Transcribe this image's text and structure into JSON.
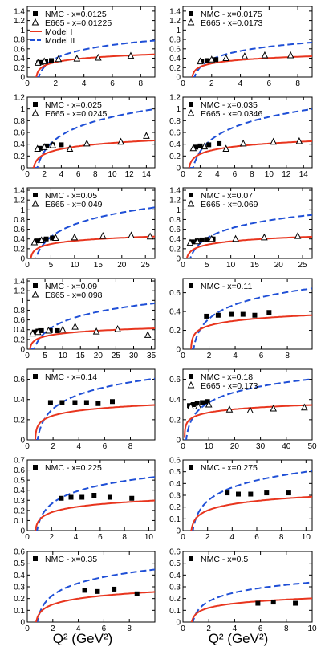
{
  "figure": {
    "xlabel": "Q² (GeV²)"
  },
  "colors": {
    "model1": "#e8351e",
    "model2": "#1f4fd6",
    "axis": "#000000"
  },
  "legend_labels": {
    "model1": "Model I",
    "model2": "Model II"
  },
  "chart_data": [
    {
      "type": "line",
      "xlim": [
        0,
        9
      ],
      "ylim": [
        0,
        1.5
      ],
      "xticks": [
        "0",
        "2",
        "4",
        "6",
        "8"
      ],
      "yticks": [
        "0",
        "0.2",
        "0.4",
        "0.6",
        "0.8",
        "1",
        "1.2",
        "1.4"
      ],
      "legend": {
        "nmc": "NMC - x=0.0125",
        "e665": "E665 - x=0.01225",
        "model1": true,
        "model2": true
      },
      "nmc": [
        [
          0.8,
          0.3
        ],
        [
          1.0,
          0.31
        ],
        [
          1.3,
          0.33
        ],
        [
          1.7,
          0.35
        ]
      ],
      "e665": [
        [
          0.75,
          0.3
        ],
        [
          1.2,
          0.33
        ],
        [
          2.2,
          0.38
        ],
        [
          3.5,
          0.39
        ],
        [
          5.0,
          0.41
        ],
        [
          7.3,
          0.45
        ]
      ],
      "model1": [
        0.26,
        0.37,
        0.42,
        0.45,
        0.48
      ],
      "model2": [
        0.28,
        0.5,
        0.62,
        0.71,
        0.78
      ]
    },
    {
      "type": "line",
      "xlim": [
        0,
        9
      ],
      "ylim": [
        0,
        1.5
      ],
      "xticks": [
        "0",
        "2",
        "4",
        "6",
        "8"
      ],
      "yticks": [
        "0",
        "0.2",
        "0.4",
        "0.6",
        "0.8",
        "1",
        "1.2",
        "1.4"
      ],
      "legend": {
        "nmc": "NMC - x=0.0175",
        "e665": "E665 - x=0.0173"
      },
      "nmc": [
        [
          1.3,
          0.34
        ],
        [
          1.7,
          0.35
        ],
        [
          2.3,
          0.37
        ]
      ],
      "e665": [
        [
          1.2,
          0.33
        ],
        [
          2.0,
          0.37
        ],
        [
          3.0,
          0.4
        ],
        [
          4.3,
          0.44
        ],
        [
          5.7,
          0.46
        ],
        [
          7.5,
          0.46
        ]
      ],
      "model1": [
        0.24,
        0.33,
        0.38,
        0.42,
        0.44
      ],
      "model2": [
        0.27,
        0.47,
        0.59,
        0.67,
        0.74
      ]
    },
    {
      "type": "line",
      "xlim": [
        0,
        15
      ],
      "ylim": [
        0,
        1.2
      ],
      "xticks": [
        "0",
        "2",
        "4",
        "6",
        "8",
        "10",
        "12",
        "14"
      ],
      "yticks": [
        "0",
        "0.2",
        "0.4",
        "0.6",
        "0.8",
        "1",
        "1.2"
      ],
      "legend": {
        "nmc": "NMC - x=0.025",
        "e665": "E665 - x=0.0245"
      },
      "nmc": [
        [
          1.5,
          0.33
        ],
        [
          2.3,
          0.37
        ],
        [
          3.0,
          0.39
        ],
        [
          4.0,
          0.39
        ]
      ],
      "e665": [
        [
          1.2,
          0.32
        ],
        [
          2.0,
          0.35
        ],
        [
          3.0,
          0.38
        ],
        [
          5.0,
          0.32
        ],
        [
          7.0,
          0.41
        ],
        [
          11.0,
          0.44
        ],
        [
          14.0,
          0.54
        ]
      ],
      "model1": [
        0.23,
        0.33,
        0.39,
        0.43,
        0.47
      ],
      "model2": [
        0.27,
        0.6,
        0.77,
        0.9,
        1.0
      ]
    },
    {
      "type": "line",
      "xlim": [
        0,
        15
      ],
      "ylim": [
        0,
        1.2
      ],
      "xticks": [
        "0",
        "2",
        "4",
        "6",
        "8",
        "10",
        "12",
        "14"
      ],
      "yticks": [
        "0",
        "0.2",
        "0.4",
        "0.6",
        "0.8",
        "1",
        "1.2"
      ],
      "legend": {
        "nmc": "NMC - x=0.035",
        "e665": "E665 - x=0.0346"
      },
      "nmc": [
        [
          1.5,
          0.35
        ],
        [
          2.0,
          0.37
        ],
        [
          3.0,
          0.39
        ],
        [
          4.2,
          0.41
        ]
      ],
      "e665": [
        [
          1.2,
          0.33
        ],
        [
          2.5,
          0.36
        ],
        [
          5.0,
          0.32
        ],
        [
          7.0,
          0.41
        ],
        [
          10.5,
          0.44
        ],
        [
          13.5,
          0.45
        ]
      ],
      "model1": [
        0.23,
        0.33,
        0.39,
        0.42,
        0.45
      ],
      "model2": [
        0.27,
        0.6,
        0.77,
        0.9,
        1.0
      ]
    },
    {
      "type": "line",
      "xlim": [
        0,
        27
      ],
      "ylim": [
        0,
        1.45
      ],
      "xticks": [
        "0",
        "5",
        "10",
        "15",
        "20",
        "25"
      ],
      "yticks": [
        "0",
        "0.2",
        "0.4",
        "0.6",
        "0.8",
        "1",
        "1.2",
        "1.4"
      ],
      "legend": {
        "nmc": "NMC - x=0.05",
        "e665": "E665 - x=0.049"
      },
      "nmc": [
        [
          2.0,
          0.36
        ],
        [
          3.0,
          0.38
        ],
        [
          4.0,
          0.4
        ],
        [
          5.3,
          0.42
        ]
      ],
      "e665": [
        [
          1.5,
          0.33
        ],
        [
          3.0,
          0.37
        ],
        [
          6.0,
          0.42
        ],
        [
          10.0,
          0.43
        ],
        [
          16.0,
          0.46
        ],
        [
          22.0,
          0.47
        ],
        [
          26.0,
          0.45
        ]
      ],
      "model1": [
        0.25,
        0.34,
        0.38,
        0.42,
        0.46
      ],
      "model2": [
        0.27,
        0.6,
        0.78,
        0.93,
        1.08
      ]
    },
    {
      "type": "line",
      "xlim": [
        0,
        27
      ],
      "ylim": [
        0,
        1.45
      ],
      "xticks": [
        "0",
        "5",
        "10",
        "15",
        "20",
        "25"
      ],
      "yticks": [
        "0",
        "0.2",
        "0.4",
        "0.6",
        "0.8",
        "1",
        "1.2",
        "1.4"
      ],
      "legend": {
        "nmc": "NMC - x=0.07",
        "e665": "E665 - x=0.069"
      },
      "nmc": [
        [
          2.0,
          0.34
        ],
        [
          3.0,
          0.36
        ],
        [
          4.0,
          0.38
        ],
        [
          5.0,
          0.39
        ],
        [
          6.3,
          0.4
        ]
      ],
      "e665": [
        [
          1.5,
          0.32
        ],
        [
          3.0,
          0.35
        ],
        [
          6.0,
          0.4
        ],
        [
          11.0,
          0.4
        ],
        [
          17.0,
          0.43
        ],
        [
          24.0,
          0.46
        ]
      ],
      "model1": [
        0.23,
        0.33,
        0.37,
        0.41,
        0.46
      ],
      "model2": [
        0.26,
        0.56,
        0.7,
        0.8,
        0.9
      ]
    },
    {
      "type": "line",
      "xlim": [
        0,
        36
      ],
      "ylim": [
        0,
        1.45
      ],
      "xticks": [
        "0",
        "5",
        "10",
        "15",
        "20",
        "25",
        "30",
        "35"
      ],
      "yticks": [
        "0",
        "0.2",
        "0.4",
        "0.6",
        "0.8",
        "1",
        "1.2",
        "1.4"
      ],
      "legend": {
        "nmc": "NMC - x=0.09",
        "e665": "E665 - x=0.098"
      },
      "nmc": [
        [
          2.0,
          0.35
        ],
        [
          3.0,
          0.37
        ],
        [
          4.0,
          0.38
        ],
        [
          6.5,
          0.38
        ],
        [
          8.5,
          0.38
        ]
      ],
      "e665": [
        [
          1.5,
          0.32
        ],
        [
          3.0,
          0.35
        ],
        [
          6.0,
          0.38
        ],
        [
          10.0,
          0.4
        ],
        [
          13.5,
          0.46
        ],
        [
          19.5,
          0.36
        ],
        [
          25.5,
          0.41
        ],
        [
          34.0,
          0.29
        ]
      ],
      "model1": [
        0.24,
        0.33,
        0.37,
        0.4,
        0.43
      ],
      "model2": [
        0.26,
        0.58,
        0.73,
        0.84,
        0.95
      ]
    },
    {
      "type": "line",
      "xlim": [
        0,
        9.9
      ],
      "ylim": [
        0,
        0.75
      ],
      "xticks": [
        "0",
        "2",
        "4",
        "6",
        "8"
      ],
      "yticks": [
        "0",
        "0.2",
        "0.4",
        "0.6"
      ],
      "legend": {
        "nmc": "NMC - x=0.11"
      },
      "nmc": [
        [
          1.8,
          0.35
        ],
        [
          2.7,
          0.36
        ],
        [
          3.7,
          0.37
        ],
        [
          4.6,
          0.37
        ],
        [
          5.5,
          0.36
        ],
        [
          6.6,
          0.39
        ]
      ],
      "e665": [],
      "model1": [
        0.22,
        0.29,
        0.32,
        0.34,
        0.36
      ],
      "model2": [
        0.25,
        0.42,
        0.52,
        0.59,
        0.65
      ]
    },
    {
      "type": "line",
      "xlim": [
        0,
        9.9
      ],
      "ylim": [
        0,
        0.7
      ],
      "xticks": [
        "0",
        "2",
        "4",
        "6",
        "8"
      ],
      "yticks": [
        "0",
        "0.2",
        "0.4",
        "0.6"
      ],
      "legend": {
        "nmc": "NMC - x=0.14"
      },
      "nmc": [
        [
          1.8,
          0.37
        ],
        [
          2.7,
          0.37
        ],
        [
          3.7,
          0.37
        ],
        [
          4.6,
          0.37
        ],
        [
          5.5,
          0.36
        ],
        [
          6.6,
          0.38
        ]
      ],
      "e665": [],
      "model1": [
        0.21,
        0.28,
        0.31,
        0.33,
        0.34
      ],
      "model2": [
        0.24,
        0.4,
        0.49,
        0.56,
        0.61
      ]
    },
    {
      "type": "line",
      "xlim": [
        0,
        50
      ],
      "ylim": [
        0,
        0.7
      ],
      "xticks": [
        "0",
        "10",
        "20",
        "30",
        "40",
        "50"
      ],
      "yticks": [
        "0",
        "0.2",
        "0.4",
        "0.6"
      ],
      "legend": {
        "nmc": "NMC - x=0.18",
        "e665": "E665 - x=0.173"
      },
      "nmc": [
        [
          2.5,
          0.34
        ],
        [
          4.0,
          0.35
        ],
        [
          5.5,
          0.36
        ],
        [
          7.5,
          0.37
        ],
        [
          9.5,
          0.38
        ]
      ],
      "e665": [
        [
          3.0,
          0.33
        ],
        [
          6.0,
          0.33
        ],
        [
          10.0,
          0.35
        ],
        [
          18.0,
          0.3
        ],
        [
          26.0,
          0.29
        ],
        [
          35.0,
          0.31
        ],
        [
          47.0,
          0.32
        ]
      ],
      "model1": [
        0.24,
        0.29,
        0.31,
        0.33,
        0.35
      ],
      "model2": [
        0.27,
        0.43,
        0.5,
        0.56,
        0.6
      ]
    },
    {
      "type": "line",
      "xlim": [
        0,
        10.5
      ],
      "ylim": [
        0,
        0.7
      ],
      "xticks": [
        "0",
        "2",
        "4",
        "6",
        "8",
        "10"
      ],
      "yticks": [
        "0",
        "0.1",
        "0.2",
        "0.3",
        "0.4",
        "0.5",
        "0.6",
        "0.7"
      ],
      "legend": {
        "nmc": "NMC - x=0.225"
      },
      "nmc": [
        [
          2.8,
          0.32
        ],
        [
          3.6,
          0.33
        ],
        [
          4.5,
          0.33
        ],
        [
          5.5,
          0.35
        ],
        [
          6.8,
          0.33
        ],
        [
          8.6,
          0.32
        ]
      ],
      "e665": [],
      "model1": [
        0.15,
        0.23,
        0.26,
        0.28,
        0.29
      ],
      "model2": [
        0.2,
        0.37,
        0.44,
        0.49,
        0.52
      ]
    },
    {
      "type": "line",
      "xlim": [
        0,
        10.5
      ],
      "ylim": [
        0,
        0.6
      ],
      "xticks": [
        "0",
        "2",
        "4",
        "6",
        "8",
        "10"
      ],
      "yticks": [
        "0",
        "0.1",
        "0.2",
        "0.3",
        "0.4",
        "0.5",
        "0.6"
      ],
      "legend": {
        "nmc": "NMC - x=0.275"
      },
      "nmc": [
        [
          3.6,
          0.32
        ],
        [
          4.5,
          0.31
        ],
        [
          5.5,
          0.31
        ],
        [
          6.8,
          0.32
        ],
        [
          8.6,
          0.32
        ]
      ],
      "e665": [],
      "model1": [
        0.14,
        0.22,
        0.25,
        0.27,
        0.28
      ],
      "model2": [
        0.19,
        0.35,
        0.42,
        0.46,
        0.5
      ]
    },
    {
      "type": "line",
      "xlim": [
        0,
        10
      ],
      "ylim": [
        0,
        0.6
      ],
      "xticks": [
        "0",
        "2",
        "4",
        "6",
        "8"
      ],
      "yticks": [
        "0",
        "0.1",
        "0.2",
        "0.3",
        "0.4",
        "0.5",
        "0.6"
      ],
      "legend": {
        "nmc": "NMC - x=0.35"
      },
      "nmc": [
        [
          4.5,
          0.27
        ],
        [
          5.5,
          0.26
        ],
        [
          6.8,
          0.28
        ],
        [
          8.6,
          0.24
        ]
      ],
      "e665": [],
      "model1": [
        0.12,
        0.19,
        0.22,
        0.24,
        0.25
      ],
      "model2": [
        0.17,
        0.31,
        0.37,
        0.41,
        0.44
      ]
    },
    {
      "type": "line",
      "xlim": [
        0,
        10
      ],
      "ylim": [
        0,
        0.6
      ],
      "xticks": [
        "0",
        "2",
        "4",
        "6",
        "8",
        "10"
      ],
      "yticks": [
        "0",
        "0.1",
        "0.2",
        "0.3",
        "0.4",
        "0.5",
        "0.6"
      ],
      "legend": {
        "nmc": "NMC - x=0.5"
      },
      "nmc": [
        [
          5.8,
          0.16
        ],
        [
          7.0,
          0.17
        ],
        [
          8.7,
          0.16
        ]
      ],
      "e665": [],
      "model1": [
        0.1,
        0.15,
        0.17,
        0.19,
        0.2
      ],
      "model2": [
        0.13,
        0.24,
        0.28,
        0.31,
        0.33
      ]
    }
  ]
}
